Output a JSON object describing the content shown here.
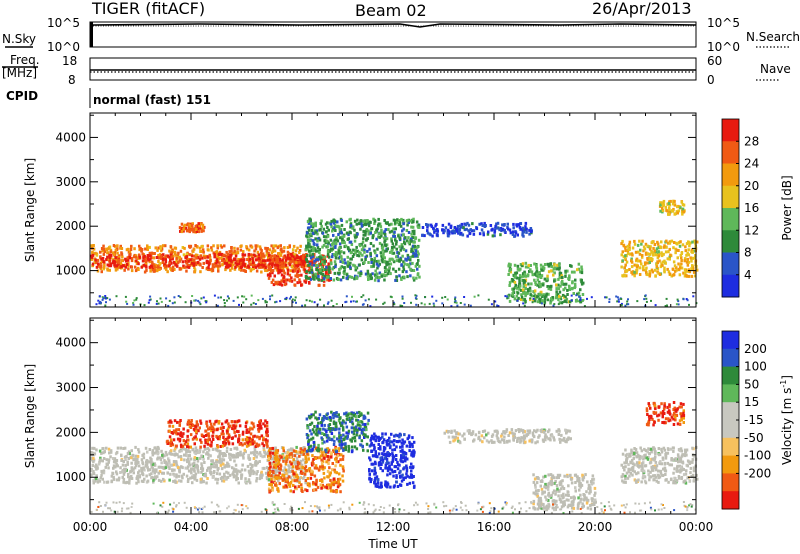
{
  "header": {
    "radar": "TIGER (fitACF)",
    "beam": "Beam 02",
    "date": "26/Apr/2013"
  },
  "strips": {
    "nsky_label": "N.Sky",
    "nsky_ticks": [
      "10^5",
      "10^0"
    ],
    "nsearch_label": "N.Search",
    "nsearch_ticks": [
      "10^5",
      "10^0"
    ],
    "freq_label_line1": "Freq.",
    "freq_label_line2": "[MHz]",
    "freq_ticks": [
      "18",
      "8"
    ],
    "nave_label": "Nave",
    "nave_ticks": [
      "60",
      "0"
    ],
    "cpid_label": "CPID",
    "cpid_text": "normal (fast) 151"
  },
  "colors": {
    "power_scale": [
      "#1e2de0",
      "#2a55c8",
      "#2e8a3a",
      "#5fb85a",
      "#e8c21e",
      "#f29a0e",
      "#f05a14",
      "#e81a10"
    ],
    "velocity_scale": [
      "#e81a10",
      "#f05a14",
      "#f29a0e",
      "#f7c15e",
      "#c8c8c0",
      "#c8c8c0",
      "#5fb85a",
      "#2e8a3a",
      "#2a55c8",
      "#1e2de0"
    ],
    "ground_scatter": "#bebeb4"
  },
  "chart_data": [
    {
      "type": "heatmap",
      "panel": "power",
      "xlabel": "Time UT",
      "ylabel": "Slant Range [km]",
      "xlim": [
        0,
        24
      ],
      "ylim": [
        180,
        4550
      ],
      "x_ticks": [
        "00:00",
        "04:00",
        "08:00",
        "12:00",
        "16:00",
        "20:00",
        "00:00"
      ],
      "y_ticks": [
        1000,
        2000,
        3000,
        4000
      ],
      "colorbar_label": "Power [dB]",
      "colorbar_ticks": [
        28,
        24,
        20,
        16,
        12,
        8,
        4
      ],
      "clim": [
        0,
        30
      ],
      "regions": [
        {
          "t": [
            0,
            8.5
          ],
          "r": [
            1000,
            1600
          ],
          "value": 22
        },
        {
          "t": [
            0,
            8.5
          ],
          "r": [
            1100,
            1400
          ],
          "value": 28
        },
        {
          "t": [
            3.5,
            4.5
          ],
          "r": [
            1900,
            2100
          ],
          "value": 24
        },
        {
          "t": [
            7.0,
            9.5
          ],
          "r": [
            700,
            1400
          ],
          "value": 26
        },
        {
          "t": [
            8.5,
            13.0
          ],
          "r": [
            800,
            2200
          ],
          "value": 10
        },
        {
          "t": [
            13.0,
            17.5
          ],
          "r": [
            1800,
            2100
          ],
          "value": 4
        },
        {
          "t": [
            16.5,
            19.5
          ],
          "r": [
            300,
            1200
          ],
          "value": 12
        },
        {
          "t": [
            21.0,
            24.0
          ],
          "r": [
            900,
            1700
          ],
          "value": 18
        },
        {
          "t": [
            22.5,
            23.5
          ],
          "r": [
            2300,
            2600
          ],
          "value": 18
        }
      ]
    },
    {
      "type": "heatmap",
      "panel": "velocity",
      "xlabel": "Time UT",
      "ylabel": "Slant Range [km]",
      "xlim": [
        0,
        24
      ],
      "ylim": [
        180,
        4550
      ],
      "x_ticks": [
        "00:00",
        "04:00",
        "08:00",
        "12:00",
        "16:00",
        "20:00",
        "00:00"
      ],
      "y_ticks": [
        1000,
        2000,
        3000,
        4000
      ],
      "colorbar_label": "Velocity [m s",
      "colorbar_label_sup": "-1",
      "colorbar_label_end": "]",
      "colorbar_ticks": [
        200,
        100,
        50,
        15,
        -15,
        -50,
        -100,
        -200
      ],
      "clim": [
        -250,
        250
      ],
      "regions": [
        {
          "t": [
            0,
            8.5
          ],
          "r": [
            900,
            1700
          ],
          "value": 0,
          "ground_scatter": true
        },
        {
          "t": [
            3.0,
            7.0
          ],
          "r": [
            1700,
            2300
          ],
          "value": -200
        },
        {
          "t": [
            7.0,
            10.0
          ],
          "r": [
            700,
            1700
          ],
          "value": -150
        },
        {
          "t": [
            8.5,
            11.0
          ],
          "r": [
            1600,
            2500
          ],
          "value": 150
        },
        {
          "t": [
            11.0,
            12.8
          ],
          "r": [
            800,
            2000
          ],
          "value": 250
        },
        {
          "t": [
            14.0,
            19.0
          ],
          "r": [
            1800,
            2100
          ],
          "value": 0,
          "ground_scatter": true
        },
        {
          "t": [
            17.5,
            20.0
          ],
          "r": [
            300,
            1100
          ],
          "value": 0,
          "ground_scatter": true
        },
        {
          "t": [
            21.0,
            24.0
          ],
          "r": [
            900,
            1700
          ],
          "value": 0,
          "ground_scatter": true
        },
        {
          "t": [
            22.0,
            23.5
          ],
          "r": [
            2200,
            2700
          ],
          "value": -200
        }
      ]
    }
  ]
}
